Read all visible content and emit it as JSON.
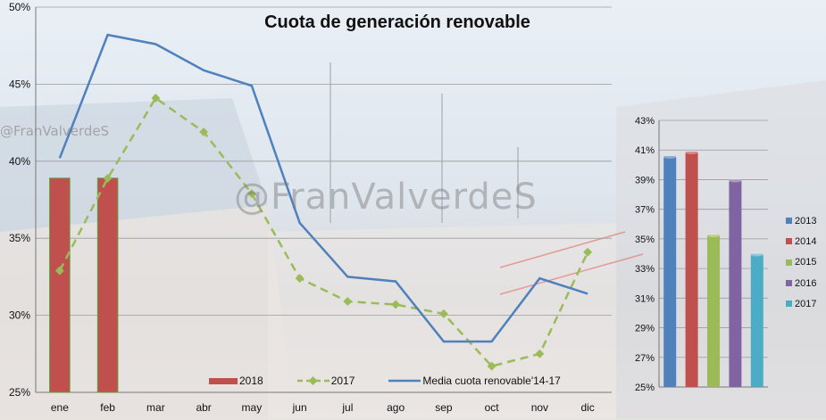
{
  "chart_data": [
    {
      "type": "bar+line",
      "title": "Cuota de generación renovable",
      "categories": [
        "ene",
        "feb",
        "mar",
        "abr",
        "may",
        "jun",
        "jul",
        "ago",
        "sep",
        "oct",
        "nov",
        "dic"
      ],
      "ylim": [
        25,
        50
      ],
      "yticks": [
        "25%",
        "30%",
        "35%",
        "40%",
        "45%",
        "50%"
      ],
      "series": [
        {
          "name": "2018",
          "type": "bar",
          "color": "#c0504d",
          "values": [
            38.9,
            38.9,
            null,
            null,
            null,
            null,
            null,
            null,
            null,
            null,
            null,
            null
          ]
        },
        {
          "name": "2017",
          "type": "line-dashed-marker",
          "color": "#9bbb59",
          "values": [
            32.9,
            38.9,
            44.1,
            41.9,
            37.9,
            32.4,
            30.9,
            30.7,
            30.1,
            26.7,
            27.5,
            34.1
          ]
        },
        {
          "name": "Media cuota renovable'14-17",
          "type": "line",
          "color": "#4f81bd",
          "values": [
            40.2,
            48.2,
            47.6,
            45.9,
            44.9,
            36.0,
            32.5,
            32.2,
            28.3,
            28.3,
            32.4,
            31.4
          ]
        }
      ],
      "grid": true,
      "legend": "bottom"
    },
    {
      "type": "bar",
      "categories": [
        "2013",
        "2014",
        "2015",
        "2016",
        "2017"
      ],
      "values": [
        40.6,
        40.9,
        35.3,
        39.0,
        34.0
      ],
      "colors": [
        "#4f81bd",
        "#c0504d",
        "#9bbb59",
        "#8064a2",
        "#4bacc6"
      ],
      "ylim": [
        25,
        43
      ],
      "yticks": [
        "25%",
        "27%",
        "29%",
        "31%",
        "33%",
        "35%",
        "37%",
        "39%",
        "41%",
        "43%"
      ],
      "grid": true,
      "legend": "right"
    }
  ],
  "watermark": "@FranValverdeS"
}
